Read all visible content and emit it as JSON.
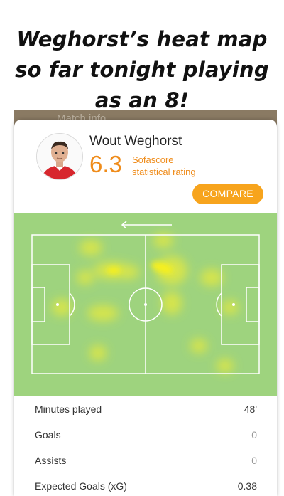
{
  "caption": {
    "line1": "Weghorst’s heat map",
    "line2": "so far tonight playing",
    "line3": "as an 8!"
  },
  "background_app": {
    "title": "Match info"
  },
  "player": {
    "name": "Wout Weghorst",
    "rating": "6.3",
    "rating_label_line1": "Sofascore",
    "rating_label_line2": "statistical rating"
  },
  "compare_button": {
    "label": "COMPARE"
  },
  "heatmap": {
    "attack_direction": "left",
    "pitch_color": "#9ed37e",
    "hot_color": "#f7f01c"
  },
  "stats": [
    {
      "label": "Minutes played",
      "value": "48'",
      "muted": false
    },
    {
      "label": "Goals",
      "value": "0",
      "muted": true
    },
    {
      "label": "Assists",
      "value": "0",
      "muted": true
    },
    {
      "label": "Expected Goals (xG)",
      "value": "0.38",
      "muted": false
    }
  ],
  "colors": {
    "accent": "#ef8c1b",
    "button": "#f7a41d"
  }
}
